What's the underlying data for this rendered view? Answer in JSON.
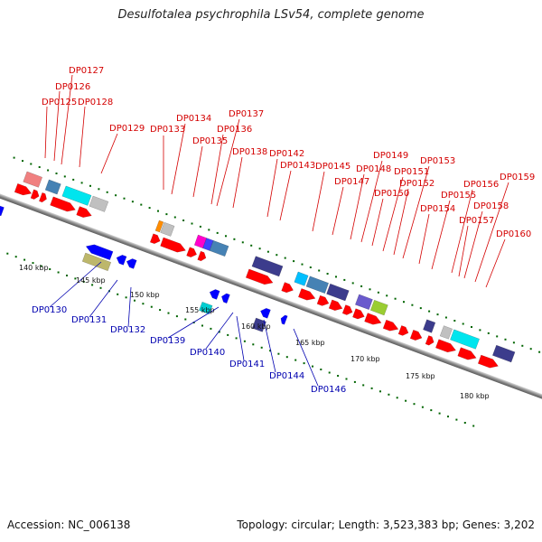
{
  "title": "Desulfotalea psychrophila LSv54, complete genome",
  "footer": {
    "accession": "Accession: NC_006138",
    "summary": "Topology: circular; Length: 3,523,383 bp; Genes: 3,202"
  },
  "kbp_labels": [
    "140 kbp",
    "145 kbp",
    "150 kbp",
    "155 kbp",
    "160 kbp",
    "165 kbp",
    "170 kbp",
    "175 kbp",
    "180 kbp"
  ],
  "top_genes": [
    "DP0125",
    "DP0126",
    "DP0127",
    "DP0128",
    "DP0129",
    "DP0133",
    "DP0134",
    "DP0135",
    "DP0136",
    "DP0137",
    "DP0138",
    "DP0142",
    "DP0143",
    "DP0145",
    "DP0147",
    "DP0148",
    "DP0149",
    "DP0150",
    "DP0151",
    "DP0152",
    "DP0153",
    "DP0154",
    "DP0155",
    "DP0156",
    "DP0157",
    "DP0158",
    "DP0159",
    "DP0160"
  ],
  "bottom_genes": [
    "DP0130",
    "DP0131",
    "DP0132",
    "DP0139",
    "DP0140",
    "DP0141",
    "DP0144",
    "DP0146"
  ],
  "colors": {
    "forward_gene": "#ff0000",
    "reverse_gene": "#0000ff",
    "top_label": "#d40000",
    "bottom_label": "#0000b0",
    "tick": "#006400",
    "axis": "#888888"
  }
}
